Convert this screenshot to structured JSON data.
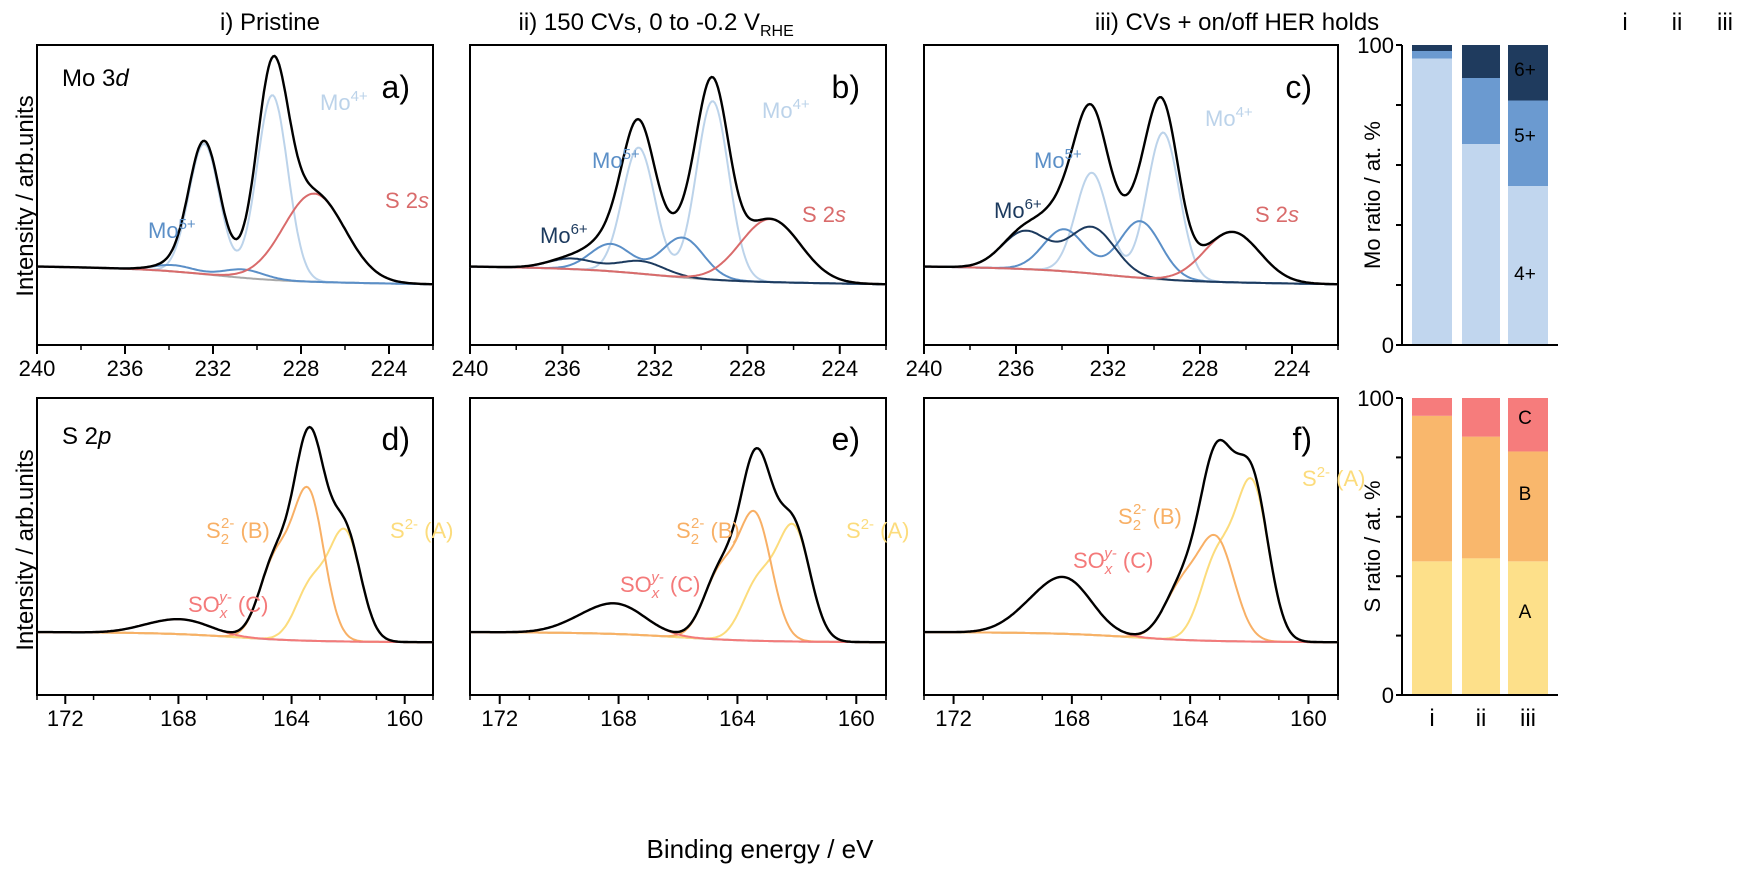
{
  "column_titles": [
    "i) Pristine",
    "ii) 150 CVs, 0 to -0.2 V",
    "iii) CVs + on/off HER holds"
  ],
  "column_title_subscript": "RHE",
  "row_labels": [
    "Mo 3",
    "S 2"
  ],
  "row_label_italic": [
    "d",
    "p"
  ],
  "ylabel_left": "Intensity / arb.units",
  "xlabel_bottom": "Binding energy / eV",
  "bar_ylabels": [
    "Mo ratio / at. %",
    "S ratio / at. %"
  ],
  "bar_categories": [
    "i",
    "ii",
    "iii"
  ],
  "colors": {
    "total": "#000000",
    "mo4": "#bcd3ea",
    "mo5": "#5b8fc7",
    "mo6": "#1c3a5e",
    "s2s": "#d96b6b",
    "bg": "#a8a8a8",
    "sA": "#fcdc7c",
    "sB": "#f8b066",
    "sC": "#f47a7a",
    "barMo4": "#c1d6ee",
    "barMo5": "#6b9ad0",
    "barMo6": "#1f3b5e",
    "barA": "#fde08a",
    "barB": "#f9b76c",
    "barC": "#f67c7c"
  },
  "chart_data": [
    {
      "panel": "a)",
      "type": "line",
      "x_range": [
        240,
        222
      ],
      "x_ticks": [
        240,
        236,
        232,
        228,
        224
      ],
      "peak_labels": [
        {
          "text": "Mo",
          "sup": "5+",
          "color": "mo5"
        },
        {
          "text": "Mo",
          "sup": "4+",
          "color": "mo4"
        },
        {
          "text": "S 2",
          "italic": "s",
          "color": "s2s"
        }
      ],
      "components": [
        {
          "name": "Mo4+",
          "color": "mo4",
          "peaks": [
            [
              229.3,
              0.88,
              0.7
            ],
            [
              232.4,
              0.62,
              0.7
            ]
          ]
        },
        {
          "name": "Mo5+",
          "color": "mo5",
          "peaks": [
            [
              230.6,
              0.04,
              0.9
            ],
            [
              233.8,
              0.03,
              0.9
            ]
          ]
        },
        {
          "name": "S 2s",
          "color": "s2s",
          "peaks": [
            [
              227.4,
              0.42,
              1.4
            ]
          ]
        }
      ]
    },
    {
      "panel": "b)",
      "type": "line",
      "x_range": [
        240,
        222
      ],
      "x_ticks": [
        240,
        236,
        232,
        228,
        224
      ],
      "peak_labels": [
        {
          "text": "Mo",
          "sup": "6+",
          "color": "mo6"
        },
        {
          "text": "Mo",
          "sup": "5+",
          "color": "mo5"
        },
        {
          "text": "Mo",
          "sup": "4+",
          "color": "mo4"
        },
        {
          "text": "S 2",
          "italic": "s",
          "color": "s2s"
        }
      ],
      "components": [
        {
          "name": "Mo4+",
          "color": "mo4",
          "peaks": [
            [
              229.5,
              0.85,
              0.7
            ],
            [
              232.7,
              0.6,
              0.7
            ]
          ]
        },
        {
          "name": "Mo5+",
          "color": "mo5",
          "peaks": [
            [
              230.8,
              0.19,
              0.9
            ],
            [
              233.9,
              0.13,
              0.9
            ]
          ]
        },
        {
          "name": "Mo6+",
          "color": "mo6",
          "peaks": [
            [
              232.6,
              0.06,
              1.0
            ],
            [
              235.6,
              0.05,
              1.0
            ]
          ]
        },
        {
          "name": "S 2s",
          "color": "s2s",
          "peaks": [
            [
              227.0,
              0.3,
              1.3
            ]
          ]
        }
      ]
    },
    {
      "panel": "c)",
      "type": "line",
      "x_range": [
        240,
        222
      ],
      "x_ticks": [
        240,
        236,
        232,
        228,
        224
      ],
      "peak_labels": [
        {
          "text": "Mo",
          "sup": "6+",
          "color": "mo6"
        },
        {
          "text": "Mo",
          "sup": "5+",
          "color": "mo5"
        },
        {
          "text": "Mo",
          "sup": "4+",
          "color": "mo4"
        },
        {
          "text": "S 2",
          "italic": "s",
          "color": "s2s"
        }
      ],
      "components": [
        {
          "name": "Mo4+",
          "color": "mo4",
          "peaks": [
            [
              229.6,
              0.7,
              0.7
            ],
            [
              232.7,
              0.48,
              0.7
            ]
          ]
        },
        {
          "name": "Mo5+",
          "color": "mo5",
          "peaks": [
            [
              230.6,
              0.27,
              0.9
            ],
            [
              233.9,
              0.2,
              0.9
            ]
          ]
        },
        {
          "name": "Mo6+",
          "color": "mo6",
          "peaks": [
            [
              232.7,
              0.22,
              1.0
            ],
            [
              235.6,
              0.18,
              1.0
            ]
          ]
        },
        {
          "name": "S 2s",
          "color": "s2s",
          "peaks": [
            [
              226.6,
              0.24,
              1.2
            ]
          ]
        }
      ]
    },
    {
      "panel": "d)",
      "type": "line",
      "x_range": [
        173,
        159
      ],
      "x_ticks": [
        172,
        168,
        164,
        160
      ],
      "peak_labels": [
        {
          "text": "SO",
          "sub": "x",
          "sup": "y-",
          "tail": " (C)",
          "color": "sC"
        },
        {
          "text": "S",
          "sub": "2",
          "sup": "2-",
          "tail": " (B)",
          "color": "sB"
        },
        {
          "text": "S",
          "sup": "2-",
          "tail": " (A)",
          "color": "sA"
        }
      ],
      "components": [
        {
          "name": "A",
          "color": "sA",
          "peaks": [
            [
              162.1,
              0.47,
              0.55
            ],
            [
              163.3,
              0.24,
              0.55
            ]
          ]
        },
        {
          "name": "B",
          "color": "sB",
          "peaks": [
            [
              163.4,
              0.64,
              0.55
            ],
            [
              164.6,
              0.33,
              0.55
            ]
          ]
        },
        {
          "name": "C",
          "color": "sC",
          "peaks": [
            [
              167.6,
              0.05,
              0.9
            ],
            [
              168.8,
              0.03,
              0.9
            ]
          ]
        }
      ]
    },
    {
      "panel": "e)",
      "type": "line",
      "x_range": [
        173,
        159
      ],
      "x_ticks": [
        172,
        168,
        164,
        160
      ],
      "peak_labels": [
        {
          "text": "SO",
          "sub": "x",
          "sup": "y-",
          "tail": " (C)",
          "color": "sC"
        },
        {
          "text": "S",
          "sub": "2",
          "sup": "2-",
          "tail": " (B)",
          "color": "sB"
        },
        {
          "text": "S",
          "sup": "2-",
          "tail": " (A)",
          "color": "sA"
        }
      ],
      "components": [
        {
          "name": "A",
          "color": "sA",
          "peaks": [
            [
              162.1,
              0.49,
              0.55
            ],
            [
              163.3,
              0.25,
              0.55
            ]
          ]
        },
        {
          "name": "B",
          "color": "sB",
          "peaks": [
            [
              163.4,
              0.54,
              0.55
            ],
            [
              164.6,
              0.28,
              0.55
            ]
          ]
        },
        {
          "name": "C",
          "color": "sC",
          "peaks": [
            [
              167.9,
              0.11,
              0.9
            ],
            [
              169.1,
              0.05,
              0.9
            ]
          ]
        }
      ]
    },
    {
      "panel": "f)",
      "type": "line",
      "x_range": [
        173,
        159
      ],
      "x_ticks": [
        172,
        168,
        164,
        160
      ],
      "peak_labels": [
        {
          "text": "SO",
          "sub": "x",
          "sup": "y-",
          "tail": " (C)",
          "color": "sC"
        },
        {
          "text": "S",
          "sub": "2",
          "sup": "2-",
          "tail": " (B)",
          "color": "sB"
        },
        {
          "text": "S",
          "sup": "2-",
          "tail": " (A)",
          "color": "sA"
        }
      ],
      "components": [
        {
          "name": "A",
          "color": "sA",
          "peaks": [
            [
              161.9,
              0.68,
              0.55
            ],
            [
              163.1,
              0.35,
              0.55
            ]
          ]
        },
        {
          "name": "B",
          "color": "sB",
          "peaks": [
            [
              163.1,
              0.43,
              0.6
            ],
            [
              164.3,
              0.22,
              0.6
            ]
          ]
        },
        {
          "name": "C",
          "color": "sC",
          "peaks": [
            [
              168.1,
              0.21,
              0.85
            ],
            [
              169.3,
              0.09,
              0.85
            ]
          ]
        }
      ]
    },
    {
      "type": "bar",
      "stacked": true,
      "ylabel": "Mo ratio / at. %",
      "ylim": [
        0,
        100
      ],
      "y_ticks": [
        "0",
        "",
        "",
        "",
        "",
        "100"
      ],
      "categories": [
        "i",
        "ii",
        "iii"
      ],
      "series": [
        {
          "name": "4+",
          "color": "barMo4",
          "values": [
            95.5,
            67.0,
            53.0
          ]
        },
        {
          "name": "5+",
          "color": "barMo5",
          "values": [
            2.5,
            22.0,
            28.5
          ]
        },
        {
          "name": "6+",
          "color": "barMo6",
          "values": [
            2.0,
            11.0,
            18.5
          ]
        }
      ]
    },
    {
      "type": "bar",
      "stacked": true,
      "ylabel": "S ratio / at. %",
      "ylim": [
        0,
        100
      ],
      "y_ticks": [
        "0",
        "",
        "",
        "",
        "",
        "100"
      ],
      "categories": [
        "i",
        "ii",
        "iii"
      ],
      "series": [
        {
          "name": "A",
          "color": "barA",
          "values": [
            45.0,
            46.0,
            45.0
          ]
        },
        {
          "name": "B",
          "color": "barB",
          "values": [
            49.0,
            41.0,
            37.0
          ]
        },
        {
          "name": "C",
          "color": "barC",
          "values": [
            6.0,
            13.0,
            18.0
          ]
        }
      ]
    }
  ]
}
